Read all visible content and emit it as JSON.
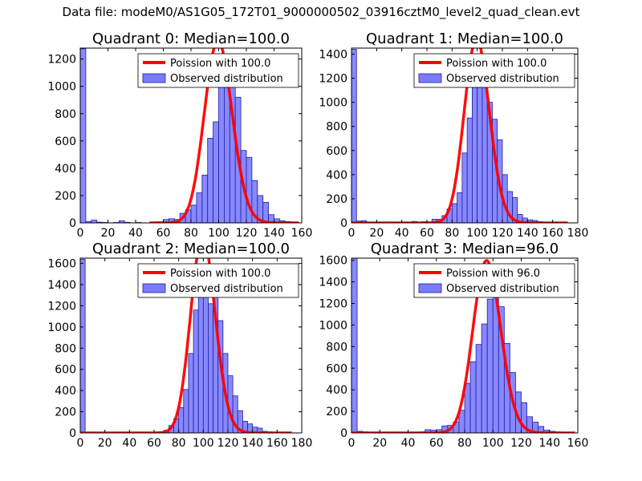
{
  "suptitle": "Data file: modeM0/AS1G05_172T01_9000000502_03916cztM0_level2_quad_clean.evt",
  "colors": {
    "poisson": "#ff0000",
    "bars": "#7b7bff",
    "bar_edge": "#2020a0"
  },
  "chart_data": [
    {
      "type": "bar",
      "title": "Quadrant 0: Median=100.0",
      "xlim": [
        0,
        160
      ],
      "ylim": [
        0,
        1280
      ],
      "xticks": [
        0,
        20,
        40,
        60,
        80,
        100,
        120,
        140,
        160
      ],
      "yticks": [
        0,
        200,
        400,
        600,
        800,
        1000,
        1200
      ],
      "legend": {
        "placement": "top-right",
        "line_label": "Poission with 100.0",
        "bar_label": "Observed distribution"
      },
      "mu": 100,
      "line_x": [
        50,
        158
      ],
      "bin_width": 4,
      "bins": [
        [
          0,
          1275
        ],
        [
          4,
          10
        ],
        [
          8,
          20
        ],
        [
          12,
          5
        ],
        [
          16,
          3
        ],
        [
          24,
          3
        ],
        [
          28,
          15
        ],
        [
          32,
          4
        ],
        [
          40,
          3
        ],
        [
          52,
          5
        ],
        [
          56,
          8
        ],
        [
          60,
          25
        ],
        [
          64,
          30
        ],
        [
          68,
          25
        ],
        [
          72,
          70
        ],
        [
          76,
          95
        ],
        [
          80,
          130
        ],
        [
          84,
          220
        ],
        [
          88,
          350
        ],
        [
          92,
          620
        ],
        [
          96,
          740
        ],
        [
          100,
          1040
        ],
        [
          104,
          1200
        ],
        [
          108,
          1030
        ],
        [
          112,
          920
        ],
        [
          116,
          530
        ],
        [
          120,
          480
        ],
        [
          124,
          310
        ],
        [
          128,
          200
        ],
        [
          132,
          150
        ],
        [
          136,
          60
        ],
        [
          140,
          30
        ],
        [
          144,
          15
        ],
        [
          148,
          10
        ],
        [
          152,
          5
        ]
      ]
    },
    {
      "type": "bar",
      "title": "Quadrant 1: Median=100.0",
      "xlim": [
        0,
        180
      ],
      "ylim": [
        0,
        1450
      ],
      "xticks": [
        0,
        20,
        40,
        60,
        80,
        100,
        120,
        140,
        160,
        180
      ],
      "yticks": [
        0,
        200,
        400,
        600,
        800,
        1000,
        1200,
        1400
      ],
      "legend": {
        "placement": "top-right",
        "line_label": "Poission with 100.0",
        "bar_label": "Observed distribution"
      },
      "mu": 100,
      "line_x": [
        0,
        172
      ],
      "bin_width": 4,
      "bins": [
        [
          0,
          1440
        ],
        [
          4,
          15
        ],
        [
          8,
          18
        ],
        [
          12,
          5
        ],
        [
          20,
          3
        ],
        [
          32,
          4
        ],
        [
          48,
          12
        ],
        [
          56,
          10
        ],
        [
          64,
          30
        ],
        [
          68,
          30
        ],
        [
          72,
          60
        ],
        [
          76,
          115
        ],
        [
          80,
          160
        ],
        [
          84,
          250
        ],
        [
          88,
          580
        ],
        [
          92,
          870
        ],
        [
          96,
          1340
        ],
        [
          100,
          1250
        ],
        [
          104,
          1220
        ],
        [
          108,
          1000
        ],
        [
          112,
          860
        ],
        [
          116,
          690
        ],
        [
          120,
          400
        ],
        [
          124,
          260
        ],
        [
          128,
          210
        ],
        [
          132,
          70
        ],
        [
          136,
          40
        ],
        [
          140,
          25
        ],
        [
          144,
          20
        ],
        [
          148,
          10
        ],
        [
          152,
          5
        ],
        [
          160,
          3
        ]
      ]
    },
    {
      "type": "bar",
      "title": "Quadrant 2: Median=100.0",
      "xlim": [
        0,
        180
      ],
      "ylim": [
        0,
        1650
      ],
      "xticks": [
        0,
        20,
        40,
        60,
        80,
        100,
        120,
        140,
        160,
        180
      ],
      "yticks": [
        0,
        200,
        400,
        600,
        800,
        1000,
        1200,
        1400,
        1600
      ],
      "legend": {
        "placement": "top-right",
        "line_label": "Poission with 100.0",
        "bar_label": "Observed distribution"
      },
      "mu": 100,
      "line_x": [
        0,
        172
      ],
      "bin_width": 4,
      "bins": [
        [
          0,
          1640
        ],
        [
          64,
          10
        ],
        [
          68,
          25
        ],
        [
          72,
          70
        ],
        [
          76,
          135
        ],
        [
          80,
          240
        ],
        [
          84,
          410
        ],
        [
          88,
          750
        ],
        [
          92,
          1160
        ],
        [
          96,
          1530
        ],
        [
          100,
          1500
        ],
        [
          104,
          1220
        ],
        [
          108,
          1310
        ],
        [
          112,
          1060
        ],
        [
          116,
          750
        ],
        [
          120,
          540
        ],
        [
          124,
          350
        ],
        [
          128,
          210
        ],
        [
          132,
          110
        ],
        [
          136,
          85
        ],
        [
          140,
          55
        ],
        [
          144,
          45
        ],
        [
          148,
          15
        ],
        [
          152,
          10
        ],
        [
          156,
          5
        ]
      ]
    },
    {
      "type": "bar",
      "title": "Quadrant 3: Median=96.0",
      "xlim": [
        0,
        160
      ],
      "ylim": [
        0,
        1620
      ],
      "xticks": [
        0,
        20,
        40,
        60,
        80,
        100,
        120,
        140,
        160
      ],
      "yticks": [
        0,
        200,
        400,
        600,
        800,
        1000,
        1200,
        1400,
        1600
      ],
      "legend": {
        "placement": "top-right",
        "line_label": "Poission with 96.0",
        "bar_label": "Observed distribution"
      },
      "mu": 96,
      "line_x": [
        0,
        158
      ],
      "bin_width": 4,
      "bins": [
        [
          0,
          1620
        ],
        [
          4,
          15
        ],
        [
          8,
          10
        ],
        [
          12,
          5
        ],
        [
          16,
          8
        ],
        [
          20,
          5
        ],
        [
          24,
          5
        ],
        [
          28,
          5
        ],
        [
          32,
          8
        ],
        [
          36,
          5
        ],
        [
          40,
          8
        ],
        [
          44,
          5
        ],
        [
          48,
          10
        ],
        [
          52,
          30
        ],
        [
          56,
          25
        ],
        [
          60,
          30
        ],
        [
          64,
          65
        ],
        [
          68,
          70
        ],
        [
          72,
          100
        ],
        [
          76,
          210
        ],
        [
          80,
          460
        ],
        [
          84,
          660
        ],
        [
          88,
          820
        ],
        [
          92,
          1010
        ],
        [
          96,
          1240
        ],
        [
          100,
          1420
        ],
        [
          104,
          1170
        ],
        [
          108,
          830
        ],
        [
          112,
          560
        ],
        [
          116,
          380
        ],
        [
          120,
          280
        ],
        [
          124,
          150
        ],
        [
          128,
          100
        ],
        [
          132,
          60
        ],
        [
          136,
          25
        ],
        [
          140,
          15
        ],
        [
          144,
          10
        ],
        [
          148,
          3
        ]
      ]
    }
  ]
}
